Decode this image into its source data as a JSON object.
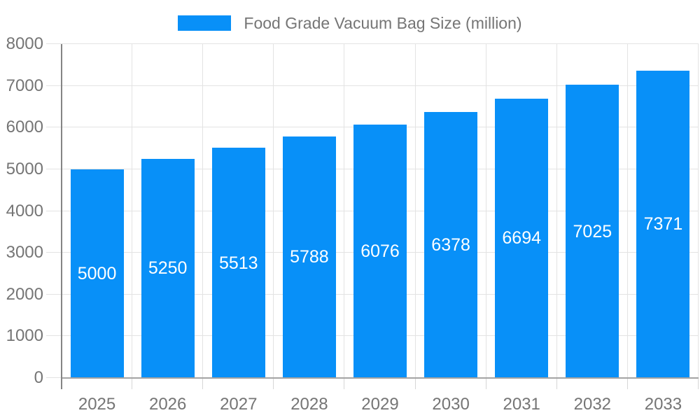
{
  "legend": {
    "label": "Food Grade Vacuum Bag Size (million)"
  },
  "chart_data": {
    "type": "bar",
    "title": "Food Grade Vacuum Bag Size (million)",
    "categories": [
      "2025",
      "2026",
      "2027",
      "2028",
      "2029",
      "2030",
      "2031",
      "2032",
      "2033"
    ],
    "values": [
      5000,
      5250,
      5513,
      5788,
      6076,
      6378,
      6694,
      7025,
      7371
    ],
    "xlabel": "",
    "ylabel": "",
    "ylim": [
      0,
      8000
    ],
    "yticks": [
      0,
      1000,
      2000,
      3000,
      4000,
      5000,
      6000,
      7000,
      8000
    ],
    "grid": true,
    "legend_position": "top",
    "value_label_position": "inside-center"
  },
  "colors": {
    "bar": "#0890f8",
    "value_label": "#ffffff",
    "text": "#757575",
    "axis_line": "#848484",
    "baseline": "#a3a3a3",
    "gridline": "#e3e3e3",
    "tick": "#d6d6d6",
    "background": "#ffffff"
  }
}
